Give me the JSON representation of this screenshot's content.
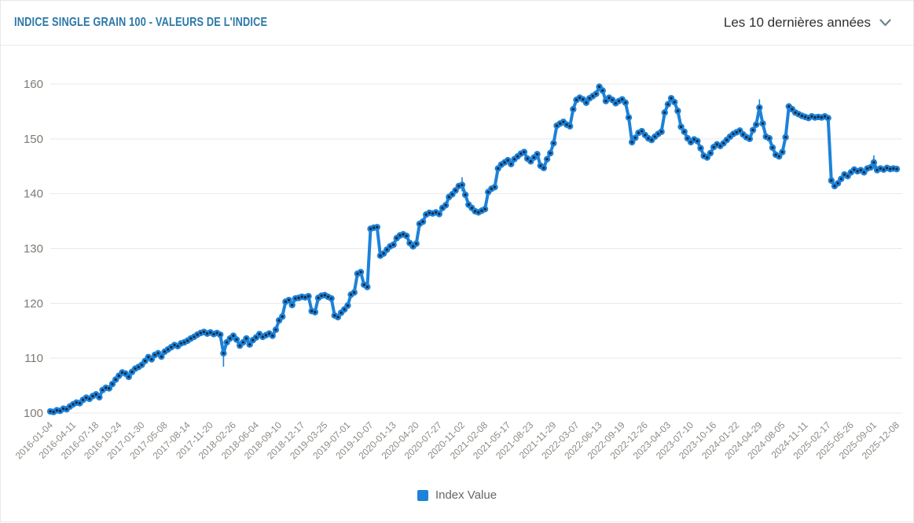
{
  "header": {
    "title": "INDICE SINGLE GRAIN 100 - VALEURS DE L'INDICE",
    "period_selector": {
      "label": "Les 10 dernières années",
      "icon": "chevron-down-icon"
    }
  },
  "colors": {
    "series": "#1d82d8",
    "marker_center": "#13293f",
    "title": "#2a78a8",
    "grid": "#e9e9e9",
    "y_axis_text": "#7f7a74",
    "x_axis_text": "#8e8983",
    "legend_text": "#666666"
  },
  "chart_data": {
    "type": "line",
    "title": "INDICE SINGLE GRAIN 100 - VALEURS DE L'INDICE",
    "xlabel": "",
    "ylabel": "",
    "ylim": [
      100,
      160
    ],
    "ytick_step": 10,
    "grid": "on",
    "legend_position": "bottom",
    "x_labels": [
      "2016-01-04",
      "2016-04-11",
      "2016-07-18",
      "2016-10-24",
      "2017-01-30",
      "2017-05-08",
      "2017-08-14",
      "2017-11-20",
      "2018-02-26",
      "2018-06-04",
      "2018-09-10",
      "2018-12-17",
      "2019-03-25",
      "2019-07-01",
      "2019-10-07",
      "2020-01-13",
      "2020-04-20",
      "2020-07-27",
      "2020-11-02",
      "2021-02-08",
      "2021-05-17",
      "2021-08-23",
      "2021-11-29",
      "2022-03-07",
      "2022-06-13",
      "2022-09-19",
      "2022-12-26",
      "2023-04-03",
      "2023-07-10",
      "2023-10-16",
      "2024-01-22",
      "2024-04-29",
      "2024-08-05",
      "2024-11-11",
      "2025-02-17",
      "2025-05-26",
      "2025-09-01",
      "2025-12-08"
    ],
    "series": [
      {
        "name": "Index Value",
        "points": [
          [
            "2016-01-04",
            100.3
          ],
          [
            "2016-01-18",
            100.2
          ],
          [
            "2016-02-01",
            100.5
          ],
          [
            "2016-02-15",
            100.4
          ],
          [
            "2016-02-29",
            100.8
          ],
          [
            "2016-03-14",
            100.7
          ],
          [
            "2016-03-28",
            101.2
          ],
          [
            "2016-04-11",
            101.6
          ],
          [
            "2016-04-25",
            101.9
          ],
          [
            "2016-05-09",
            101.8
          ],
          [
            "2016-05-23",
            102.4
          ],
          [
            "2016-06-06",
            102.8
          ],
          [
            "2016-06-20",
            102.6
          ],
          [
            "2016-07-04",
            103.1
          ],
          [
            "2016-07-18",
            103.4
          ],
          [
            "2016-08-01",
            102.9
          ],
          [
            "2016-08-15",
            104.2
          ],
          [
            "2016-08-29",
            104.6
          ],
          [
            "2016-09-12",
            104.5
          ],
          [
            "2016-09-26",
            105.3
          ],
          [
            "2016-10-10",
            106.1
          ],
          [
            "2016-10-24",
            106.8
          ],
          [
            "2016-11-07",
            107.4
          ],
          [
            "2016-11-21",
            107.2
          ],
          [
            "2016-12-05",
            106.6
          ],
          [
            "2016-12-19",
            107.5
          ],
          [
            "2017-01-02",
            108.1
          ],
          [
            "2017-01-16",
            108.4
          ],
          [
            "2017-01-30",
            108.8
          ],
          [
            "2017-02-13",
            109.5
          ],
          [
            "2017-02-27",
            110.2
          ],
          [
            "2017-03-13",
            109.8
          ],
          [
            "2017-03-27",
            110.6
          ],
          [
            "2017-04-10",
            110.9
          ],
          [
            "2017-04-24",
            110.3
          ],
          [
            "2017-05-08",
            111.2
          ],
          [
            "2017-05-22",
            111.6
          ],
          [
            "2017-06-05",
            112.0
          ],
          [
            "2017-06-19",
            112.4
          ],
          [
            "2017-07-03",
            112.2
          ],
          [
            "2017-07-17",
            112.7
          ],
          [
            "2017-07-31",
            112.9
          ],
          [
            "2017-08-14",
            113.2
          ],
          [
            "2017-08-28",
            113.6
          ],
          [
            "2017-09-11",
            113.9
          ],
          [
            "2017-09-25",
            114.3
          ],
          [
            "2017-10-09",
            114.6
          ],
          [
            "2017-10-23",
            114.8
          ],
          [
            "2017-11-06",
            114.5
          ],
          [
            "2017-11-20",
            114.7
          ],
          [
            "2017-12-04",
            114.4
          ],
          [
            "2017-12-18",
            114.6
          ],
          [
            "2018-01-01",
            114.3
          ],
          [
            "2018-01-15",
            110.9
          ],
          [
            "2018-01-29",
            112.9
          ],
          [
            "2018-02-12",
            113.6
          ],
          [
            "2018-02-26",
            114.1
          ],
          [
            "2018-03-12",
            113.4
          ],
          [
            "2018-03-26",
            112.3
          ],
          [
            "2018-04-09",
            112.9
          ],
          [
            "2018-04-23",
            113.6
          ],
          [
            "2018-05-07",
            112.5
          ],
          [
            "2018-05-21",
            113.3
          ],
          [
            "2018-06-04",
            113.8
          ],
          [
            "2018-06-18",
            114.4
          ],
          [
            "2018-07-02",
            113.9
          ],
          [
            "2018-07-16",
            114.2
          ],
          [
            "2018-07-30",
            114.5
          ],
          [
            "2018-08-13",
            114.1
          ],
          [
            "2018-08-27",
            115.2
          ],
          [
            "2018-09-10",
            116.9
          ],
          [
            "2018-09-24",
            117.6
          ],
          [
            "2018-10-08",
            120.3
          ],
          [
            "2018-10-22",
            120.6
          ],
          [
            "2018-11-05",
            119.7
          ],
          [
            "2018-11-19",
            120.9
          ],
          [
            "2018-12-03",
            121.0
          ],
          [
            "2018-12-17",
            121.2
          ],
          [
            "2018-12-31",
            121.1
          ],
          [
            "2019-01-14",
            121.3
          ],
          [
            "2019-01-28",
            118.6
          ],
          [
            "2019-02-11",
            118.4
          ],
          [
            "2019-02-25",
            121.0
          ],
          [
            "2019-03-11",
            121.4
          ],
          [
            "2019-03-25",
            121.5
          ],
          [
            "2019-04-08",
            121.2
          ],
          [
            "2019-04-22",
            120.9
          ],
          [
            "2019-05-06",
            117.8
          ],
          [
            "2019-05-20",
            117.5
          ],
          [
            "2019-06-03",
            118.3
          ],
          [
            "2019-06-17",
            118.9
          ],
          [
            "2019-07-01",
            119.6
          ],
          [
            "2019-07-15",
            121.6
          ],
          [
            "2019-07-29",
            122.0
          ],
          [
            "2019-08-12",
            125.4
          ],
          [
            "2019-08-26",
            125.7
          ],
          [
            "2019-09-09",
            123.4
          ],
          [
            "2019-09-23",
            123.0
          ],
          [
            "2019-10-07",
            133.6
          ],
          [
            "2019-10-21",
            133.8
          ],
          [
            "2019-11-04",
            133.9
          ],
          [
            "2019-11-18",
            128.7
          ],
          [
            "2019-12-02",
            129.1
          ],
          [
            "2019-12-16",
            129.8
          ],
          [
            "2019-12-30",
            130.4
          ],
          [
            "2020-01-13",
            130.7
          ],
          [
            "2020-01-27",
            131.9
          ],
          [
            "2020-02-10",
            132.4
          ],
          [
            "2020-02-24",
            132.6
          ],
          [
            "2020-03-09",
            132.3
          ],
          [
            "2020-03-23",
            131.0
          ],
          [
            "2020-04-06",
            130.4
          ],
          [
            "2020-04-20",
            130.9
          ],
          [
            "2020-05-04",
            134.5
          ],
          [
            "2020-05-18",
            134.9
          ],
          [
            "2020-06-01",
            136.2
          ],
          [
            "2020-06-15",
            136.5
          ],
          [
            "2020-06-29",
            136.4
          ],
          [
            "2020-07-13",
            136.6
          ],
          [
            "2020-07-27",
            136.3
          ],
          [
            "2020-08-10",
            137.4
          ],
          [
            "2020-08-24",
            137.9
          ],
          [
            "2020-09-07",
            139.4
          ],
          [
            "2020-09-21",
            139.9
          ],
          [
            "2020-10-05",
            140.6
          ],
          [
            "2020-10-19",
            141.4
          ],
          [
            "2020-11-02",
            141.6
          ],
          [
            "2020-11-16",
            139.8
          ],
          [
            "2020-11-30",
            138.0
          ],
          [
            "2020-12-14",
            137.4
          ],
          [
            "2020-12-28",
            136.8
          ],
          [
            "2021-01-11",
            136.6
          ],
          [
            "2021-01-25",
            136.9
          ],
          [
            "2021-02-08",
            137.2
          ],
          [
            "2021-02-22",
            140.3
          ],
          [
            "2021-03-08",
            140.9
          ],
          [
            "2021-03-22",
            141.2
          ],
          [
            "2021-04-05",
            144.6
          ],
          [
            "2021-04-19",
            145.3
          ],
          [
            "2021-05-03",
            145.7
          ],
          [
            "2021-05-17",
            146.1
          ],
          [
            "2021-05-31",
            145.4
          ],
          [
            "2021-06-14",
            146.3
          ],
          [
            "2021-06-28",
            146.8
          ],
          [
            "2021-07-12",
            147.3
          ],
          [
            "2021-07-26",
            147.6
          ],
          [
            "2021-08-09",
            146.4
          ],
          [
            "2021-08-23",
            145.9
          ],
          [
            "2021-09-06",
            146.6
          ],
          [
            "2021-09-20",
            147.2
          ],
          [
            "2021-10-04",
            145.1
          ],
          [
            "2021-10-18",
            144.7
          ],
          [
            "2021-11-01",
            146.3
          ],
          [
            "2021-11-15",
            147.4
          ],
          [
            "2021-11-29",
            149.2
          ],
          [
            "2021-12-13",
            152.4
          ],
          [
            "2021-12-27",
            152.8
          ],
          [
            "2022-01-10",
            153.1
          ],
          [
            "2022-01-24",
            152.6
          ],
          [
            "2022-02-07",
            152.3
          ],
          [
            "2022-02-21",
            155.4
          ],
          [
            "2022-03-07",
            157.1
          ],
          [
            "2022-03-21",
            157.5
          ],
          [
            "2022-04-04",
            157.2
          ],
          [
            "2022-04-18",
            156.6
          ],
          [
            "2022-05-02",
            157.4
          ],
          [
            "2022-05-16",
            157.8
          ],
          [
            "2022-05-30",
            158.2
          ],
          [
            "2022-06-13",
            159.5
          ],
          [
            "2022-06-27",
            158.8
          ],
          [
            "2022-07-11",
            156.9
          ],
          [
            "2022-07-25",
            157.5
          ],
          [
            "2022-08-08",
            157.1
          ],
          [
            "2022-08-22",
            156.5
          ],
          [
            "2022-09-05",
            156.9
          ],
          [
            "2022-09-19",
            157.2
          ],
          [
            "2022-10-03",
            156.6
          ],
          [
            "2022-10-17",
            153.9
          ],
          [
            "2022-10-31",
            149.4
          ],
          [
            "2022-11-14",
            150.2
          ],
          [
            "2022-11-28",
            151.1
          ],
          [
            "2022-12-12",
            151.4
          ],
          [
            "2022-12-26",
            150.7
          ],
          [
            "2023-01-09",
            150.1
          ],
          [
            "2023-01-23",
            149.8
          ],
          [
            "2023-02-06",
            150.4
          ],
          [
            "2023-02-20",
            150.9
          ],
          [
            "2023-03-06",
            151.3
          ],
          [
            "2023-03-20",
            154.8
          ],
          [
            "2023-04-03",
            156.3
          ],
          [
            "2023-04-17",
            157.4
          ],
          [
            "2023-05-01",
            156.7
          ],
          [
            "2023-05-15",
            155.1
          ],
          [
            "2023-05-29",
            152.2
          ],
          [
            "2023-06-12",
            151.3
          ],
          [
            "2023-06-26",
            150.1
          ],
          [
            "2023-07-10",
            149.4
          ],
          [
            "2023-07-24",
            149.9
          ],
          [
            "2023-08-07",
            149.6
          ],
          [
            "2023-08-21",
            148.3
          ],
          [
            "2023-09-04",
            146.9
          ],
          [
            "2023-09-18",
            146.6
          ],
          [
            "2023-10-02",
            147.4
          ],
          [
            "2023-10-16",
            148.5
          ],
          [
            "2023-10-30",
            149.0
          ],
          [
            "2023-11-13",
            148.7
          ],
          [
            "2023-11-27",
            149.2
          ],
          [
            "2023-12-11",
            149.8
          ],
          [
            "2023-12-25",
            150.4
          ],
          [
            "2024-01-08",
            150.9
          ],
          [
            "2024-01-22",
            151.2
          ],
          [
            "2024-02-05",
            151.5
          ],
          [
            "2024-02-19",
            150.8
          ],
          [
            "2024-03-04",
            150.3
          ],
          [
            "2024-03-18",
            150.0
          ],
          [
            "2024-04-01",
            151.6
          ],
          [
            "2024-04-15",
            152.6
          ],
          [
            "2024-04-29",
            155.7
          ],
          [
            "2024-05-13",
            152.8
          ],
          [
            "2024-05-27",
            150.4
          ],
          [
            "2024-06-10",
            150.1
          ],
          [
            "2024-06-24",
            148.4
          ],
          [
            "2024-07-08",
            147.1
          ],
          [
            "2024-07-22",
            146.8
          ],
          [
            "2024-08-05",
            147.6
          ],
          [
            "2024-08-19",
            150.3
          ],
          [
            "2024-09-02",
            155.9
          ],
          [
            "2024-09-16",
            155.4
          ],
          [
            "2024-09-30",
            154.8
          ],
          [
            "2024-10-14",
            154.5
          ],
          [
            "2024-10-28",
            154.2
          ],
          [
            "2024-11-11",
            154.0
          ],
          [
            "2024-11-25",
            153.8
          ],
          [
            "2024-12-09",
            154.1
          ],
          [
            "2024-12-23",
            153.9
          ],
          [
            "2025-01-06",
            154.0
          ],
          [
            "2025-01-20",
            153.9
          ],
          [
            "2025-02-03",
            154.1
          ],
          [
            "2025-02-17",
            153.8
          ],
          [
            "2025-03-03",
            142.4
          ],
          [
            "2025-03-17",
            141.4
          ],
          [
            "2025-03-31",
            141.9
          ],
          [
            "2025-04-14",
            142.7
          ],
          [
            "2025-04-28",
            143.5
          ],
          [
            "2025-05-12",
            143.2
          ],
          [
            "2025-05-26",
            143.9
          ],
          [
            "2025-06-09",
            144.4
          ],
          [
            "2025-06-23",
            144.1
          ],
          [
            "2025-07-07",
            144.3
          ],
          [
            "2025-07-21",
            143.9
          ],
          [
            "2025-08-04",
            144.6
          ],
          [
            "2025-08-18",
            144.8
          ],
          [
            "2025-09-01",
            145.7
          ],
          [
            "2025-09-15",
            144.3
          ],
          [
            "2025-09-29",
            144.6
          ],
          [
            "2025-10-13",
            144.4
          ],
          [
            "2025-10-27",
            144.7
          ],
          [
            "2025-11-10",
            144.5
          ],
          [
            "2025-11-24",
            144.6
          ],
          [
            "2025-12-08",
            144.5
          ]
        ],
        "error_bars": [
          {
            "date": "2018-01-15",
            "low": 109.6,
            "high": 110.9
          },
          {
            "date": "2020-11-02",
            "low": 141.6,
            "high": 143.0
          },
          {
            "date": "2024-04-29",
            "low": 155.7,
            "high": 157.2
          },
          {
            "date": "2025-09-01",
            "low": 145.7,
            "high": 147.0
          }
        ]
      }
    ]
  }
}
